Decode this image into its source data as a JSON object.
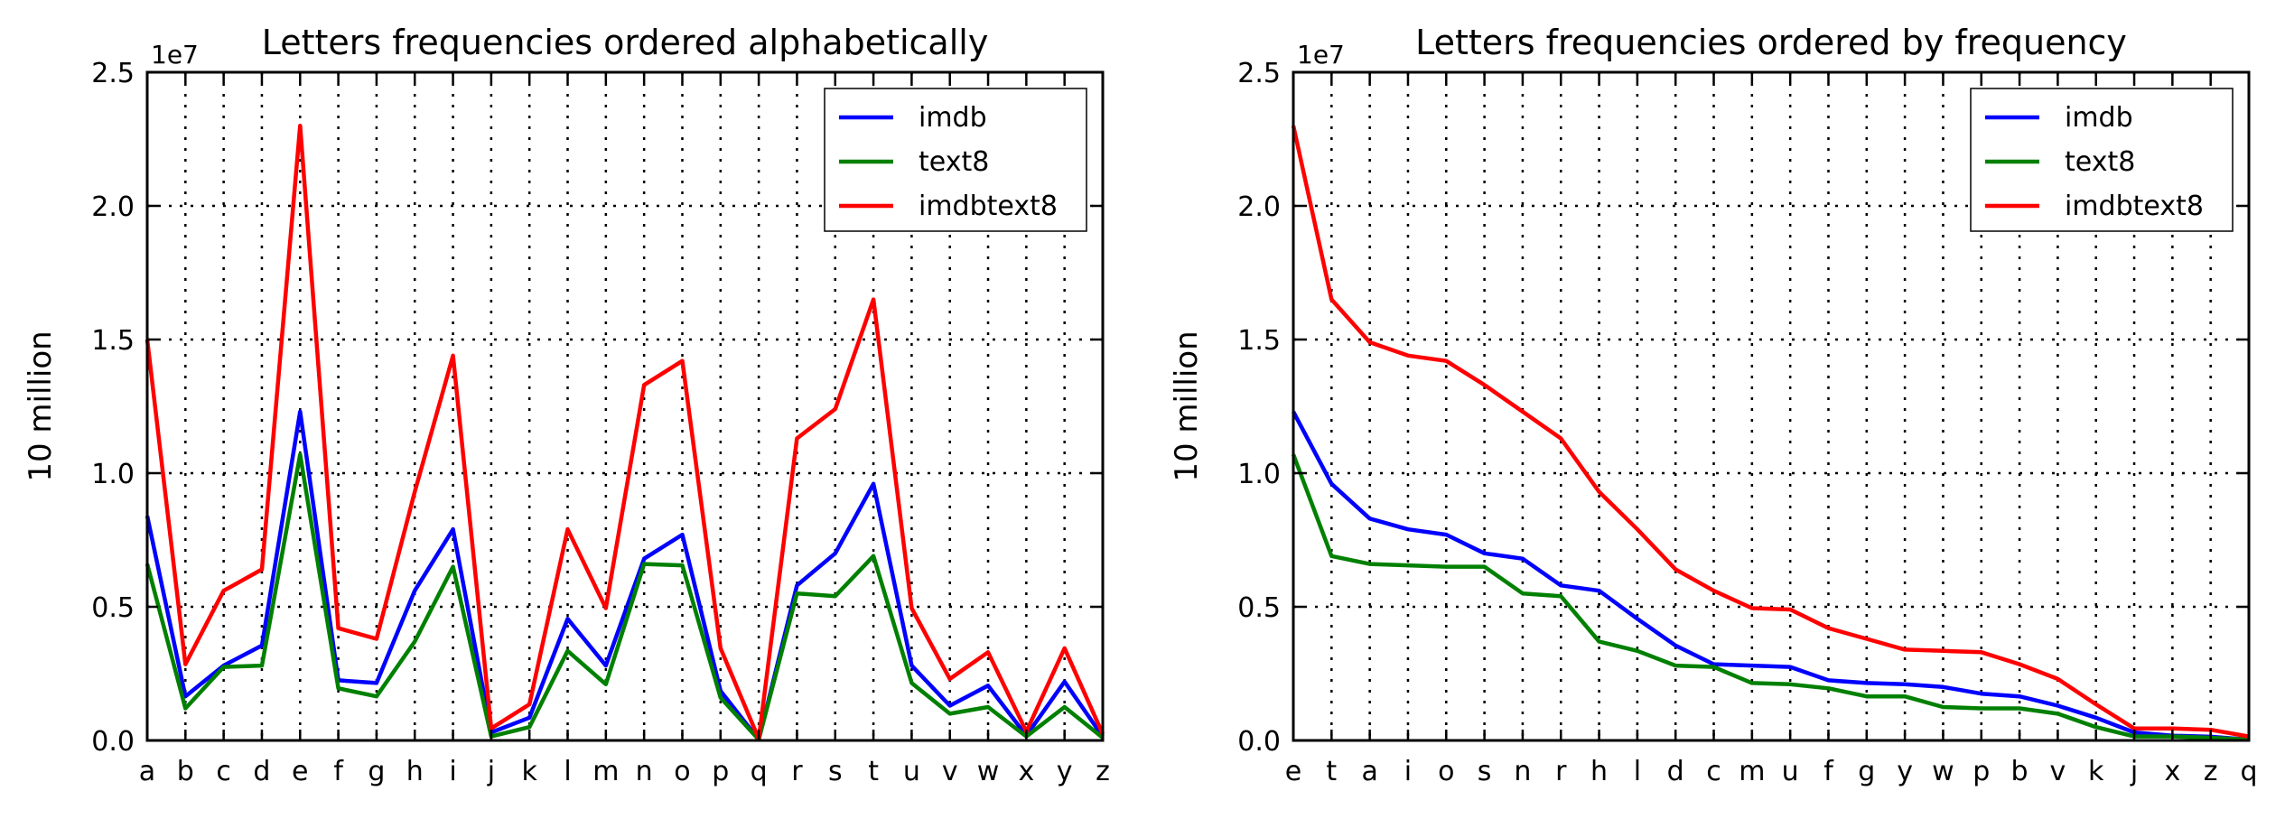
{
  "chart_data": [
    {
      "type": "line",
      "title": "Letters frequencies ordered alphabetically",
      "ylabel": "10 million",
      "y_offset_label": "1e7",
      "yticks": [
        "0.0",
        "0.5",
        "1.0",
        "1.5",
        "2.0",
        "2.5"
      ],
      "ylim": [
        0,
        25000000
      ],
      "grid": true,
      "legend_position": "top-right",
      "categories": [
        "a",
        "b",
        "c",
        "d",
        "e",
        "f",
        "g",
        "h",
        "i",
        "j",
        "k",
        "l",
        "m",
        "n",
        "o",
        "p",
        "q",
        "r",
        "s",
        "t",
        "u",
        "v",
        "w",
        "x",
        "y",
        "z"
      ],
      "series": [
        {
          "name": "imdb",
          "color": "#0000ff",
          "values": [
            8400000,
            1650000,
            2800000,
            3550000,
            12300000,
            2250000,
            2150000,
            5600000,
            7900000,
            300000,
            850000,
            4550000,
            2800000,
            6800000,
            7700000,
            1850000,
            30000,
            5800000,
            7000000,
            9600000,
            2800000,
            1300000,
            2050000,
            180000,
            2200000,
            140000
          ]
        },
        {
          "name": "text8",
          "color": "#008000",
          "values": [
            6600000,
            1200000,
            2750000,
            2800000,
            10700000,
            1950000,
            1650000,
            3700000,
            6500000,
            150000,
            500000,
            3350000,
            2100000,
            6600000,
            6550000,
            1600000,
            30000,
            5500000,
            5400000,
            6900000,
            2150000,
            1000000,
            1250000,
            150000,
            1250000,
            100000
          ]
        },
        {
          "name": "imdbtext8",
          "color": "#ff0000",
          "values": [
            15000000,
            2850000,
            5600000,
            6400000,
            23000000,
            4200000,
            3800000,
            9300000,
            14400000,
            450000,
            1350000,
            7900000,
            4950000,
            13300000,
            14200000,
            3450000,
            60000,
            11300000,
            12400000,
            16500000,
            4950000,
            2300000,
            3300000,
            330000,
            3450000,
            240000
          ]
        }
      ]
    },
    {
      "type": "line",
      "title": "Letters frequencies ordered by frequency",
      "ylabel": "10 million",
      "y_offset_label": "1e7",
      "yticks": [
        "0.0",
        "0.5",
        "1.0",
        "1.5",
        "2.0",
        "2.5"
      ],
      "ylim": [
        0,
        25000000
      ],
      "grid": true,
      "legend_position": "top-right",
      "categories": [
        "e",
        "t",
        "a",
        "i",
        "o",
        "s",
        "n",
        "r",
        "h",
        "l",
        "d",
        "c",
        "m",
        "u",
        "f",
        "g",
        "y",
        "w",
        "p",
        "b",
        "v",
        "k",
        "j",
        "x",
        "z",
        "q"
      ],
      "series": [
        {
          "name": "imdb",
          "color": "#0000ff",
          "values": [
            12300000,
            9600000,
            8300000,
            7900000,
            7700000,
            7000000,
            6800000,
            5800000,
            5600000,
            4550000,
            3550000,
            2850000,
            2800000,
            2750000,
            2250000,
            2150000,
            2100000,
            2000000,
            1750000,
            1650000,
            1300000,
            850000,
            300000,
            180000,
            140000,
            30000
          ]
        },
        {
          "name": "text8",
          "color": "#008000",
          "values": [
            10700000,
            6900000,
            6600000,
            6550000,
            6500000,
            6500000,
            5500000,
            5400000,
            3700000,
            3350000,
            2800000,
            2750000,
            2150000,
            2100000,
            1950000,
            1650000,
            1650000,
            1250000,
            1200000,
            1200000,
            1000000,
            500000,
            150000,
            150000,
            100000,
            30000
          ]
        },
        {
          "name": "imdbtext8",
          "color": "#ff0000",
          "values": [
            23000000,
            16500000,
            14900000,
            14400000,
            14200000,
            13300000,
            12300000,
            11300000,
            9300000,
            7900000,
            6400000,
            5600000,
            4950000,
            4900000,
            4200000,
            3800000,
            3400000,
            3350000,
            3300000,
            2850000,
            2300000,
            1350000,
            450000,
            450000,
            400000,
            150000
          ]
        }
      ]
    }
  ]
}
